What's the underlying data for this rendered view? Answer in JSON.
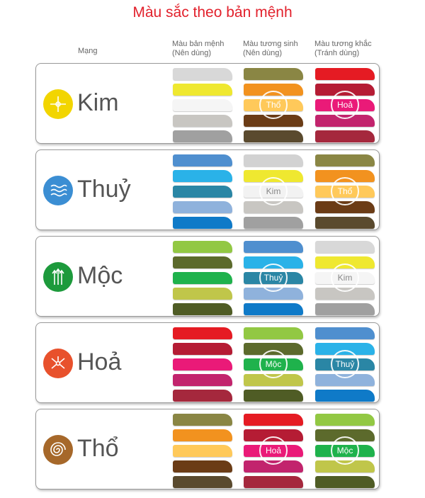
{
  "title": "Màu sắc theo bản mệnh",
  "headers": {
    "menh": "Mạng",
    "col1_line1": "Màu bản mệnh",
    "col1_line2": "(Nên dùng)",
    "col2_line1": "Màu tương sinh",
    "col2_line2": "(Nên dùng)",
    "col3_line1": "Màu tương khắc",
    "col3_line2": "(Tránh dùng)"
  },
  "rows": [
    {
      "name": "Kim",
      "icon": "kim-icon",
      "icon_color": "#f2d500",
      "cols": [
        {
          "colors": [
            "#d8d8d8",
            "#efe830",
            "#f5f5f5",
            "#c8c6c2",
            "#a0a0a0"
          ],
          "label": ""
        },
        {
          "colors": [
            "#8a8644",
            "#f2921f",
            "#ffc95a",
            "#6b3c16",
            "#5a4a2e"
          ],
          "label": "Thổ"
        },
        {
          "colors": [
            "#e51b23",
            "#b51c34",
            "#ea1a78",
            "#c2246d",
            "#a5283d"
          ],
          "label": "Hoả"
        }
      ]
    },
    {
      "name": "Thuỷ",
      "icon": "thuy-icon",
      "icon_color": "#3b8ed3",
      "cols": [
        {
          "colors": [
            "#4f8fcf",
            "#2ab2e8",
            "#2a86a5",
            "#8fb2dc",
            "#0f7ac8"
          ],
          "label": ""
        },
        {
          "colors": [
            "#d2d2d2",
            "#efe830",
            "#f2f2f2",
            "#c8c6c2",
            "#a0a0a0"
          ],
          "label": "Kim"
        },
        {
          "colors": [
            "#8a8644",
            "#f2921f",
            "#ffc95a",
            "#6b3c16",
            "#5a4a2e"
          ],
          "label": "Thổ"
        }
      ]
    },
    {
      "name": "Mộc",
      "icon": "moc-icon",
      "icon_color": "#1d9a3c",
      "cols": [
        {
          "colors": [
            "#92c843",
            "#5c6a2c",
            "#1fb24c",
            "#c0c64a",
            "#4f5c25"
          ],
          "label": ""
        },
        {
          "colors": [
            "#4f8fcf",
            "#2ab2e8",
            "#2a86a5",
            "#8fb2dc",
            "#0f7ac8"
          ],
          "label": "Thuỷ"
        },
        {
          "colors": [
            "#d8d8d8",
            "#efe830",
            "#f5f5f5",
            "#c8c6c2",
            "#a0a0a0"
          ],
          "label": "Kim"
        }
      ]
    },
    {
      "name": "Hoả",
      "icon": "hoa-icon",
      "icon_color": "#e8512c",
      "cols": [
        {
          "colors": [
            "#e51b23",
            "#b51c34",
            "#ea1a78",
            "#c2246d",
            "#a5283d"
          ],
          "label": ""
        },
        {
          "colors": [
            "#92c843",
            "#5c6a2c",
            "#1fb24c",
            "#c0c64a",
            "#4f5c25"
          ],
          "label": "Mộc"
        },
        {
          "colors": [
            "#4f8fcf",
            "#2ab2e8",
            "#2a86a5",
            "#8fb2dc",
            "#0f7ac8"
          ],
          "label": "Thuỷ"
        }
      ]
    },
    {
      "name": "Thổ",
      "icon": "tho-icon",
      "icon_color": "#a6682a",
      "cols": [
        {
          "colors": [
            "#8a8644",
            "#f2921f",
            "#ffc95a",
            "#6b3c16",
            "#5a4a2e"
          ],
          "label": ""
        },
        {
          "colors": [
            "#e51b23",
            "#b51c34",
            "#ea1a78",
            "#c2246d",
            "#a5283d"
          ],
          "label": "Hoả"
        },
        {
          "colors": [
            "#92c843",
            "#5c6a2c",
            "#1fb24c",
            "#c0c64a",
            "#4f5c25"
          ],
          "label": "Mộc"
        }
      ]
    }
  ]
}
